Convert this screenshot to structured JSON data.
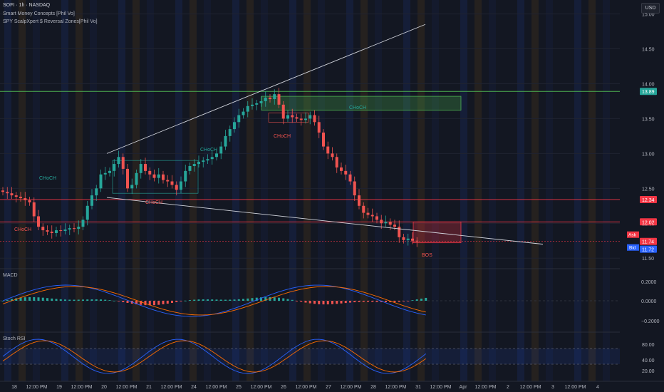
{
  "header": {
    "symbol_line": "SOFI · 1h · NASDAQ",
    "indicator_1": "Smart Money Concepts [Phil Vo]",
    "indicator_2": "SPY ScalpXpert $ Reversal Zones[Phil Vo]",
    "currency_button": "USD"
  },
  "panes": {
    "macd_label": "MACD",
    "stoch_label": "Stoch RSI"
  },
  "colors": {
    "background": "#131722",
    "up": "#26a69a",
    "down": "#ef5350",
    "choch_up": "#26a69a",
    "choch_down": "#ef5350",
    "zone_green": "#4caf50",
    "zone_red": "#f23645",
    "ask": "#f23645",
    "bid": "#2962ff"
  },
  "price_axis": {
    "ticks": [
      "15.00",
      "14.50",
      "14.00",
      "13.50",
      "13.00",
      "12.50",
      "12.00",
      "11.50"
    ],
    "badges": [
      {
        "label": "13.89",
        "price": 13.89,
        "color": "#26a69a"
      },
      {
        "label": "12.34",
        "price": 12.34,
        "color": "#f23645"
      },
      {
        "label": "12.02",
        "price": 12.02,
        "color": "#f23645"
      },
      {
        "label": "11.74",
        "price": 11.74,
        "color": "#f23645"
      },
      {
        "label": "11.72",
        "price": 11.72,
        "color": "#2962ff"
      }
    ],
    "ask_label": "Ask",
    "bid_label": "Bid"
  },
  "macd_axis": {
    "ticks": [
      "0.2000",
      "0.0000",
      "−0.2000"
    ]
  },
  "stoch_axis": {
    "ticks": [
      "80.00",
      "40.00",
      "20.00"
    ]
  },
  "time_axis": [
    "18",
    "12:00 PM",
    "19",
    "12:00 PM",
    "20",
    "12:00 PM",
    "21",
    "12:00 PM",
    "24",
    "12:00 PM",
    "25",
    "12:00 PM",
    "26",
    "12:00 PM",
    "27",
    "12:00 PM",
    "28",
    "12:00 PM",
    "31",
    "12:00 PM",
    "Apr",
    "12:00 PM",
    "2",
    "12:00 PM",
    "3",
    "12:00 PM",
    "4"
  ],
  "annotations": [
    {
      "text": "CHoCH",
      "kind": "up"
    },
    {
      "text": "CHoCH",
      "kind": "down"
    },
    {
      "text": "CHoCH",
      "kind": "down"
    },
    {
      "text": "CHoCH",
      "kind": "up"
    },
    {
      "text": "CHoCH",
      "kind": "down"
    },
    {
      "text": "CHoCH",
      "kind": "up"
    },
    {
      "text": "BOS",
      "kind": "down"
    }
  ],
  "chart_data": {
    "type": "candlestick",
    "instrument": "SOFI",
    "timeframe": "1h",
    "exchange": "NASDAQ",
    "x_start": "Mar 18",
    "candles_close": [
      12.45,
      12.43,
      12.4,
      12.38,
      12.36,
      12.33,
      12.3,
      12.1,
      11.95,
      11.9,
      11.88,
      11.86,
      11.9,
      11.89,
      11.91,
      11.93,
      11.92,
      11.95,
      12.05,
      12.25,
      12.4,
      12.5,
      12.7,
      12.72,
      12.75,
      12.85,
      12.95,
      12.78,
      12.5,
      12.55,
      12.72,
      12.85,
      12.75,
      12.7,
      12.65,
      12.7,
      12.62,
      12.6,
      12.55,
      12.48,
      12.6,
      12.75,
      12.82,
      12.85,
      12.88,
      12.9,
      12.92,
      12.95,
      13.0,
      13.1,
      13.25,
      13.35,
      13.45,
      13.55,
      13.6,
      13.68,
      13.7,
      13.72,
      13.75,
      13.8,
      13.78,
      13.85,
      13.7,
      13.5,
      13.55,
      13.52,
      13.5,
      13.48,
      13.5,
      13.55,
      13.45,
      13.3,
      13.1,
      13.0,
      12.95,
      12.8,
      12.75,
      12.7,
      12.6,
      12.4,
      12.25,
      12.15,
      12.12,
      12.1,
      12.05,
      12.0,
      12.02,
      11.98,
      11.95,
      11.8,
      11.76,
      11.78,
      11.75,
      11.74
    ],
    "price_range": [
      11.4,
      15.2
    ],
    "zones": [
      {
        "label": "CHoCH",
        "type": "supply-flip",
        "top": 13.82,
        "bottom": 13.62
      },
      {
        "label": "",
        "type": "demand",
        "top": 12.02,
        "bottom": 11.72
      }
    ],
    "horizontal_levels": [
      13.89,
      12.34,
      12.02
    ],
    "trendlines": [
      "upper wedge line",
      "lower wedge line"
    ],
    "macd": {
      "hist_range": [
        -0.2,
        0.2
      ]
    },
    "stoch_rsi": {
      "range": [
        0,
        100
      ],
      "levels": [
        20,
        80
      ]
    }
  }
}
